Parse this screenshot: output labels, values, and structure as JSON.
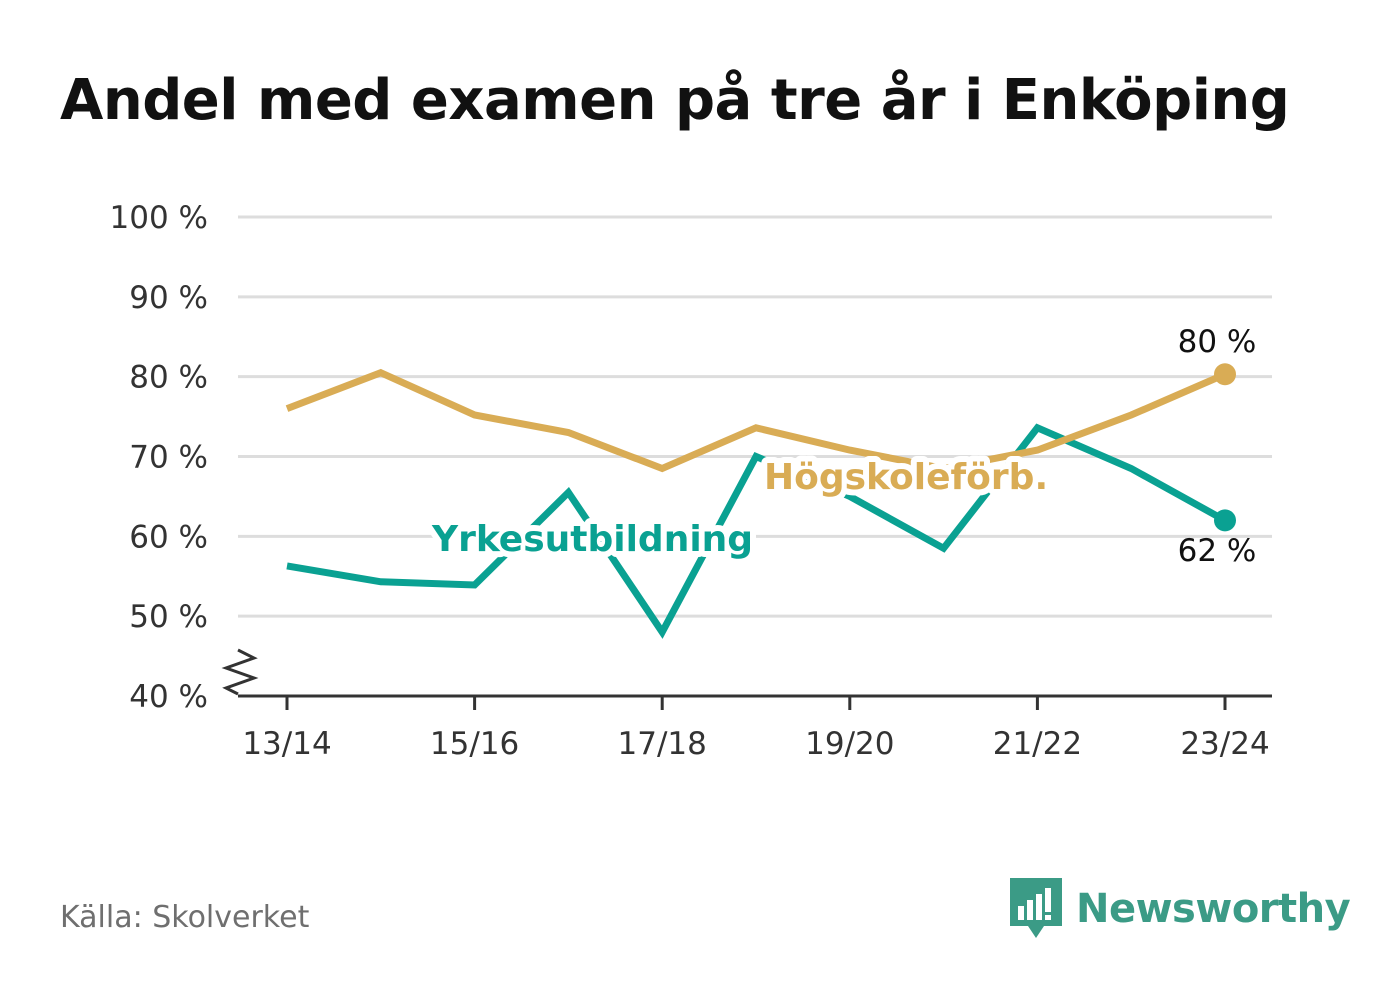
{
  "title": "Andel med examen på tre år i Enköping",
  "source": "Källa: Skolverket",
  "brand": {
    "name": "Newsworthy",
    "icon": "newsworthy-logo-icon",
    "color": "#3b9b86"
  },
  "colors": {
    "hogskole": "#d9ac55",
    "yrke": "#0aa192",
    "grid": "#dddddd",
    "axis": "#333333"
  },
  "chart_data": {
    "type": "line",
    "x": [
      "13/14",
      "14/15",
      "15/16",
      "16/17",
      "17/18",
      "18/19",
      "19/20",
      "20/21",
      "21/22",
      "22/23",
      "23/24"
    ],
    "x_tick_labels": [
      "13/14",
      "15/16",
      "17/18",
      "19/20",
      "21/22",
      "23/24"
    ],
    "y_tick_labels": [
      "40 %",
      "50 %",
      "60 %",
      "70 %",
      "80 %",
      "90 %",
      "100 %"
    ],
    "ylim": [
      40,
      100
    ],
    "y_axis_break": true,
    "grid": true,
    "series": [
      {
        "name": "Högskoleförb.",
        "color": "#d9ac55",
        "values": [
          76,
          80.5,
          75.2,
          73,
          68.5,
          73.6,
          70.8,
          68.5,
          70.8,
          75.2,
          80.3
        ],
        "end_label": "80 %"
      },
      {
        "name": "Yrkesutbildning",
        "color": "#0aa192",
        "values": [
          56.3,
          54.3,
          53.9,
          65.5,
          48,
          70,
          65,
          58.5,
          73.6,
          68.5,
          62
        ],
        "end_label": "62 %"
      }
    ]
  }
}
